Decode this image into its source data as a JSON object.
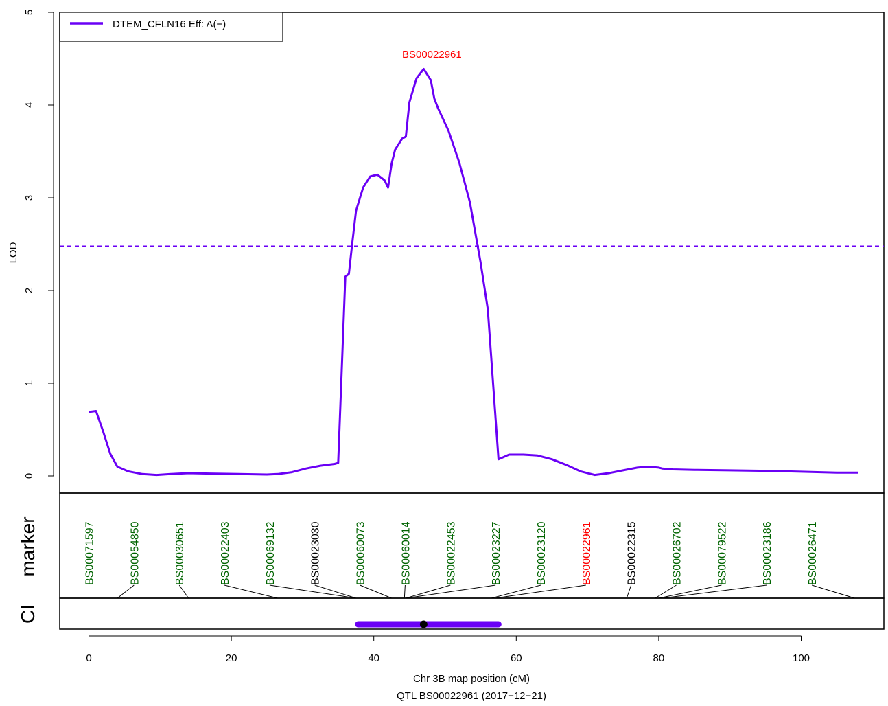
{
  "chart_data": {
    "type": "line",
    "ylabel": "LOD",
    "xlabel": "Chr 3B map position (cM)",
    "subtitle": "QTL BS00022961 (2017−12−21)",
    "xlim": [
      0,
      110
    ],
    "ylim": [
      0,
      5
    ],
    "x_ticks": [
      0,
      20,
      40,
      60,
      80,
      100
    ],
    "y_ticks": [
      0,
      1,
      2,
      3,
      4,
      5
    ],
    "threshold": 2.48,
    "threshold_color": "#6A00F5",
    "line_color": "#6A00F5",
    "legend": {
      "label": "DTEM_CFLN16 Eff: A(−)",
      "position": "top-left"
    },
    "peak": {
      "label": "BS00022961",
      "x": 47.0,
      "y": 4.39,
      "color": "#FF0000"
    },
    "series": [
      {
        "name": "DTEM_CFLN16 Eff: A(−)",
        "x": [
          0.0,
          1.0,
          2.0,
          3.0,
          4.0,
          5.5,
          7.5,
          9.5,
          11.5,
          14.0,
          17.0,
          21.0,
          25.0,
          26.5,
          28.5,
          30.5,
          32.5,
          34.5,
          35.0,
          36.0,
          36.5,
          37.0,
          37.5,
          38.5,
          39.5,
          40.5,
          41.5,
          42.0,
          42.5,
          43.0,
          44.0,
          44.5,
          45.0,
          46.0,
          47.0,
          48.0,
          48.5,
          49.0,
          50.5,
          52.0,
          53.5,
          55.0,
          55.5,
          56.0,
          57.5,
          59.0,
          61.0,
          63.0,
          65.0,
          67.0,
          69.0,
          71.0,
          73.0,
          75.0,
          77.0,
          78.5,
          80.0,
          80.5,
          82.0,
          85.0,
          90.0,
          95.0,
          100.0,
          105.0,
          108.0
        ],
        "y": [
          0.69,
          0.7,
          0.48,
          0.24,
          0.1,
          0.05,
          0.02,
          0.01,
          0.02,
          0.03,
          0.025,
          0.02,
          0.015,
          0.02,
          0.04,
          0.08,
          0.11,
          0.13,
          0.14,
          2.15,
          2.18,
          2.53,
          2.86,
          3.11,
          3.23,
          3.25,
          3.19,
          3.11,
          3.37,
          3.52,
          3.64,
          3.66,
          4.03,
          4.29,
          4.39,
          4.27,
          4.07,
          3.97,
          3.72,
          3.38,
          2.95,
          2.3,
          2.05,
          1.8,
          0.18,
          0.23,
          0.23,
          0.22,
          0.18,
          0.12,
          0.05,
          0.01,
          0.03,
          0.06,
          0.09,
          0.1,
          0.09,
          0.08,
          0.07,
          0.065,
          0.06,
          0.055,
          0.045,
          0.035,
          0.035
        ]
      }
    ],
    "marker_track": {
      "label": "marker",
      "markers": [
        {
          "name": "BS00071597",
          "pos": 0.0,
          "color": "#006400"
        },
        {
          "name": "BS00054850",
          "pos": 4.0,
          "color": "#006400"
        },
        {
          "name": "BS00030651",
          "pos": 14.0,
          "color": "#006400"
        },
        {
          "name": "BS00022403",
          "pos": 26.5,
          "color": "#006400"
        },
        {
          "name": "BS00069132",
          "pos": 37.5,
          "color": "#006400"
        },
        {
          "name": "BS00023030",
          "pos": 37.5,
          "color": "#000000"
        },
        {
          "name": "BS00060073",
          "pos": 42.5,
          "color": "#006400"
        },
        {
          "name": "BS00060014",
          "pos": 44.3,
          "color": "#006400"
        },
        {
          "name": "BS00022453",
          "pos": 44.5,
          "color": "#006400"
        },
        {
          "name": "BS00023227",
          "pos": 44.5,
          "color": "#006400"
        },
        {
          "name": "BS00023120",
          "pos": 56.5,
          "color": "#006400"
        },
        {
          "name": "BS00022961",
          "pos": 57.0,
          "color": "#FF0000"
        },
        {
          "name": "BS00022315",
          "pos": 75.5,
          "color": "#000000"
        },
        {
          "name": "BS00026702",
          "pos": 79.5,
          "color": "#006400"
        },
        {
          "name": "BS00079522",
          "pos": 80.0,
          "color": "#006400"
        },
        {
          "name": "BS00023186",
          "pos": 80.5,
          "color": "#006400"
        },
        {
          "name": "BS00026471",
          "pos": 107.5,
          "color": "#006400"
        }
      ]
    },
    "ci_track": {
      "label": "CI",
      "start": 37.8,
      "end": 57.5,
      "point": 47.0,
      "color": "#6A00F5"
    }
  }
}
